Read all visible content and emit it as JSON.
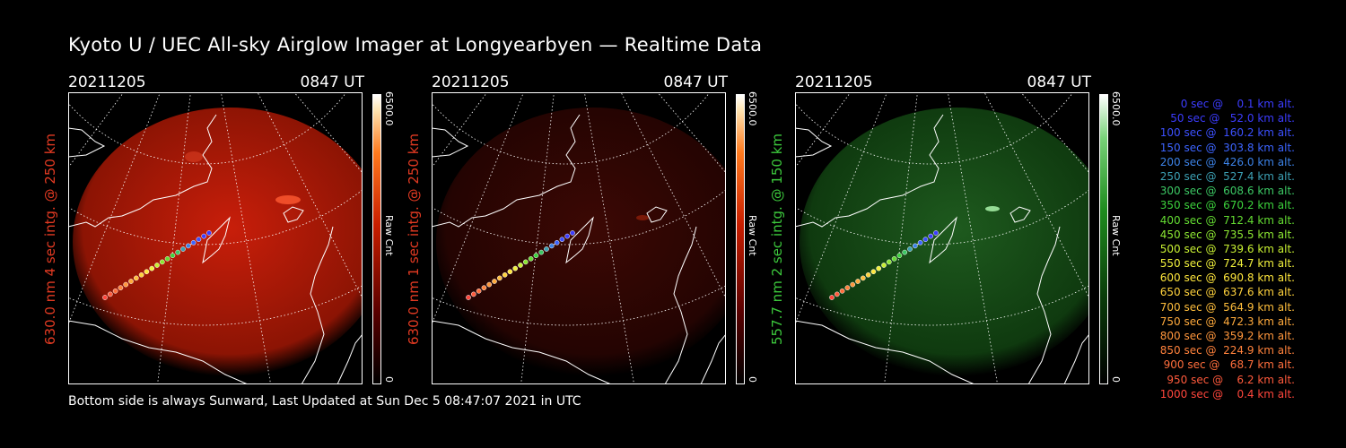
{
  "title": "Kyoto U / UEC All-sky Airglow Imager at Longyearbyen — Realtime Data",
  "footer": "Bottom side is always Sunward, Last Updated at Sun Dec  5 08:47:07 2021 in UTC",
  "panels": [
    {
      "date": "20211205",
      "time": "0847 UT",
      "ylabel": "630.0 nm 4 sec intg. @ 250 km",
      "label_color": "#e23a22",
      "glow": "red-bright",
      "cbar_max": "6500.0",
      "cbar_unit": "Raw Cnt",
      "cbar_min": "0"
    },
    {
      "date": "20211205",
      "time": "0847 UT",
      "ylabel": "630.0 nm 1 sec intg. @ 250 km",
      "label_color": "#e23a22",
      "glow": "red-dim",
      "cbar_max": "6500.0",
      "cbar_unit": "Raw Cnt",
      "cbar_min": "0"
    },
    {
      "date": "20211205",
      "time": "0847 UT",
      "ylabel": "557.7 nm 2 sec intg. @ 150 km",
      "label_color": "#3cc83c",
      "glow": "green",
      "cbar_max": "6500.0",
      "cbar_unit": "Raw Cnt",
      "cbar_min": "0"
    }
  ],
  "legend": [
    {
      "text": "0 sec @    0.1 km alt.",
      "color": "#3c3cff"
    },
    {
      "text": "50 sec @   52.0 km alt.",
      "color": "#3c3cff"
    },
    {
      "text": "100 sec @  160.2 km alt.",
      "color": "#3c50ff"
    },
    {
      "text": "150 sec @  303.8 km alt.",
      "color": "#3c64ff"
    },
    {
      "text": "200 sec @  426.0 km alt.",
      "color": "#3c82e6"
    },
    {
      "text": "250 sec @  527.4 km alt.",
      "color": "#3ca0b4"
    },
    {
      "text": "300 sec @  608.6 km alt.",
      "color": "#3cc864"
    },
    {
      "text": "350 sec @  670.2 km alt.",
      "color": "#3cd23c"
    },
    {
      "text": "400 sec @  712.4 km alt.",
      "color": "#64dc32"
    },
    {
      "text": "450 sec @  735.5 km alt.",
      "color": "#8ce632"
    },
    {
      "text": "500 sec @  739.6 km alt.",
      "color": "#c8f032"
    },
    {
      "text": "550 sec @  724.7 km alt.",
      "color": "#f0f03c"
    },
    {
      "text": "600 sec @  690.8 km alt.",
      "color": "#ffe63c"
    },
    {
      "text": "650 sec @  637.6 km alt.",
      "color": "#ffd23c"
    },
    {
      "text": "700 sec @  564.9 km alt.",
      "color": "#ffbe3c"
    },
    {
      "text": "750 sec @  472.3 km alt.",
      "color": "#ffaa3c"
    },
    {
      "text": "800 sec @  359.2 km alt.",
      "color": "#ff963c"
    },
    {
      "text": "850 sec @  224.9 km alt.",
      "color": "#ff823c"
    },
    {
      "text": "900 sec @   68.7 km alt.",
      "color": "#ff6e3c"
    },
    {
      "text": "950 sec @    6.2 km alt.",
      "color": "#ff5a3c"
    },
    {
      "text": "1000 sec @    0.4 km alt.",
      "color": "#ff463c"
    }
  ]
}
